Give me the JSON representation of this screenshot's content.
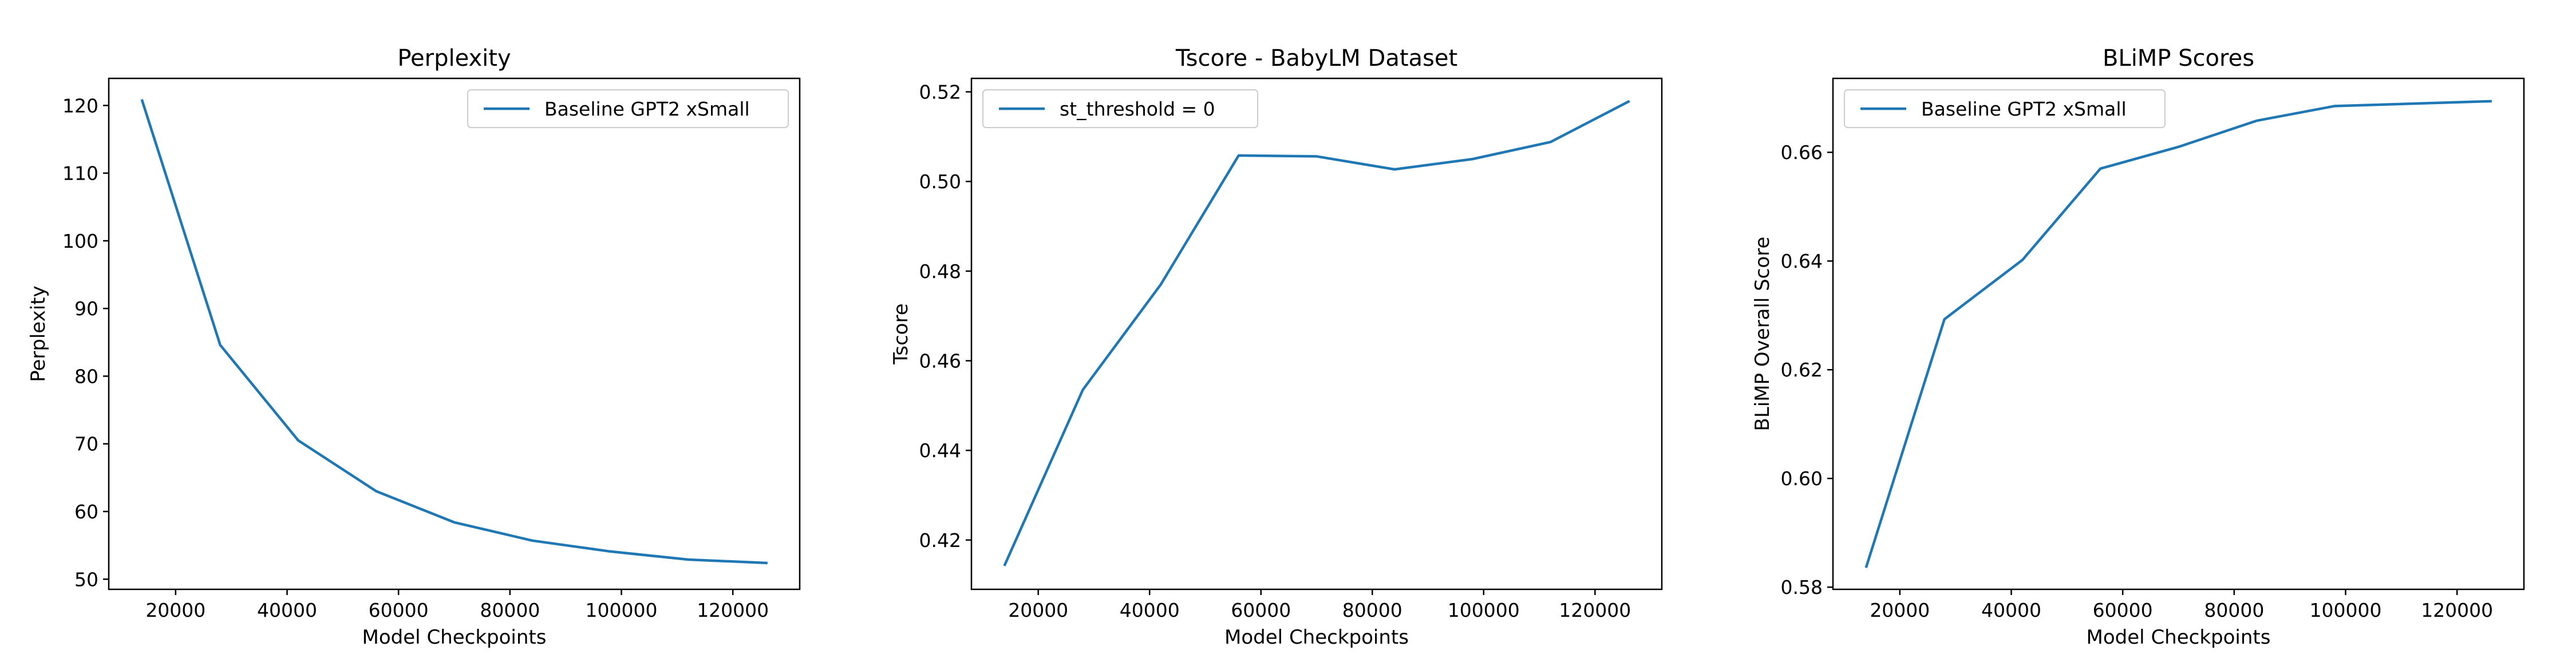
{
  "chart_data": [
    {
      "type": "line",
      "title": "Perplexity",
      "xlabel": "Model Checkpoints",
      "ylabel": "Perplexity",
      "xlim": [
        8000,
        132000
      ],
      "ylim": [
        48.5,
        124
      ],
      "xticks": [
        20000,
        40000,
        60000,
        80000,
        100000,
        120000
      ],
      "xtick_labels": [
        "20000",
        "40000",
        "60000",
        "80000",
        "100000",
        "120000"
      ],
      "yticks": [
        50,
        60,
        70,
        80,
        90,
        100,
        110,
        120
      ],
      "ytick_labels": [
        "50",
        "60",
        "70",
        "80",
        "90",
        "100",
        "110",
        "120"
      ],
      "legend_position": "top-right",
      "grid": false,
      "series": [
        {
          "name": "Baseline GPT2 xSmall",
          "color": "#1f77b4",
          "x": [
            14000,
            28000,
            42000,
            56000,
            70000,
            84000,
            98000,
            112000,
            126000
          ],
          "y": [
            120.7,
            84.6,
            70.5,
            63.0,
            58.4,
            55.7,
            54.1,
            52.9,
            52.4
          ]
        }
      ]
    },
    {
      "type": "line",
      "title": "Tscore - BabyLM Dataset",
      "xlabel": "Model Checkpoints",
      "ylabel": "Tscore",
      "xlim": [
        8000,
        132000
      ],
      "ylim": [
        0.409,
        0.523
      ],
      "xticks": [
        20000,
        40000,
        60000,
        80000,
        100000,
        120000
      ],
      "xtick_labels": [
        "20000",
        "40000",
        "60000",
        "80000",
        "100000",
        "120000"
      ],
      "yticks": [
        0.42,
        0.44,
        0.46,
        0.48,
        0.5,
        0.52
      ],
      "ytick_labels": [
        "0.42",
        "0.44",
        "0.46",
        "0.48",
        "0.50",
        "0.52"
      ],
      "legend_position": "top-left",
      "grid": false,
      "series": [
        {
          "name": "st_threshold = 0",
          "color": "#1f77b4",
          "x": [
            14000,
            28000,
            42000,
            56000,
            70000,
            84000,
            98000,
            112000,
            126000
          ],
          "y": [
            0.4145,
            0.4535,
            0.477,
            0.5058,
            0.5056,
            0.5027,
            0.505,
            0.5088,
            0.5178
          ]
        }
      ]
    },
    {
      "type": "line",
      "title": "BLiMP Scores",
      "xlabel": "Model Checkpoints",
      "ylabel": "BLiMP Overall Score",
      "xlim": [
        8000,
        132000
      ],
      "ylim": [
        0.5796,
        0.6736
      ],
      "xticks": [
        20000,
        40000,
        60000,
        80000,
        100000,
        120000
      ],
      "xtick_labels": [
        "20000",
        "40000",
        "60000",
        "80000",
        "100000",
        "120000"
      ],
      "yticks": [
        0.58,
        0.6,
        0.62,
        0.64,
        0.66
      ],
      "ytick_labels": [
        "0.58",
        "0.60",
        "0.62",
        "0.64",
        "0.66"
      ],
      "legend_position": "top-left",
      "grid": false,
      "series": [
        {
          "name": "Baseline GPT2 xSmall",
          "color": "#1f77b4",
          "x": [
            14000,
            28000,
            42000,
            56000,
            70000,
            84000,
            98000,
            126000
          ],
          "y": [
            0.5838,
            0.6293,
            0.6402,
            0.657,
            0.661,
            0.6658,
            0.6685,
            0.6694
          ]
        }
      ]
    }
  ]
}
